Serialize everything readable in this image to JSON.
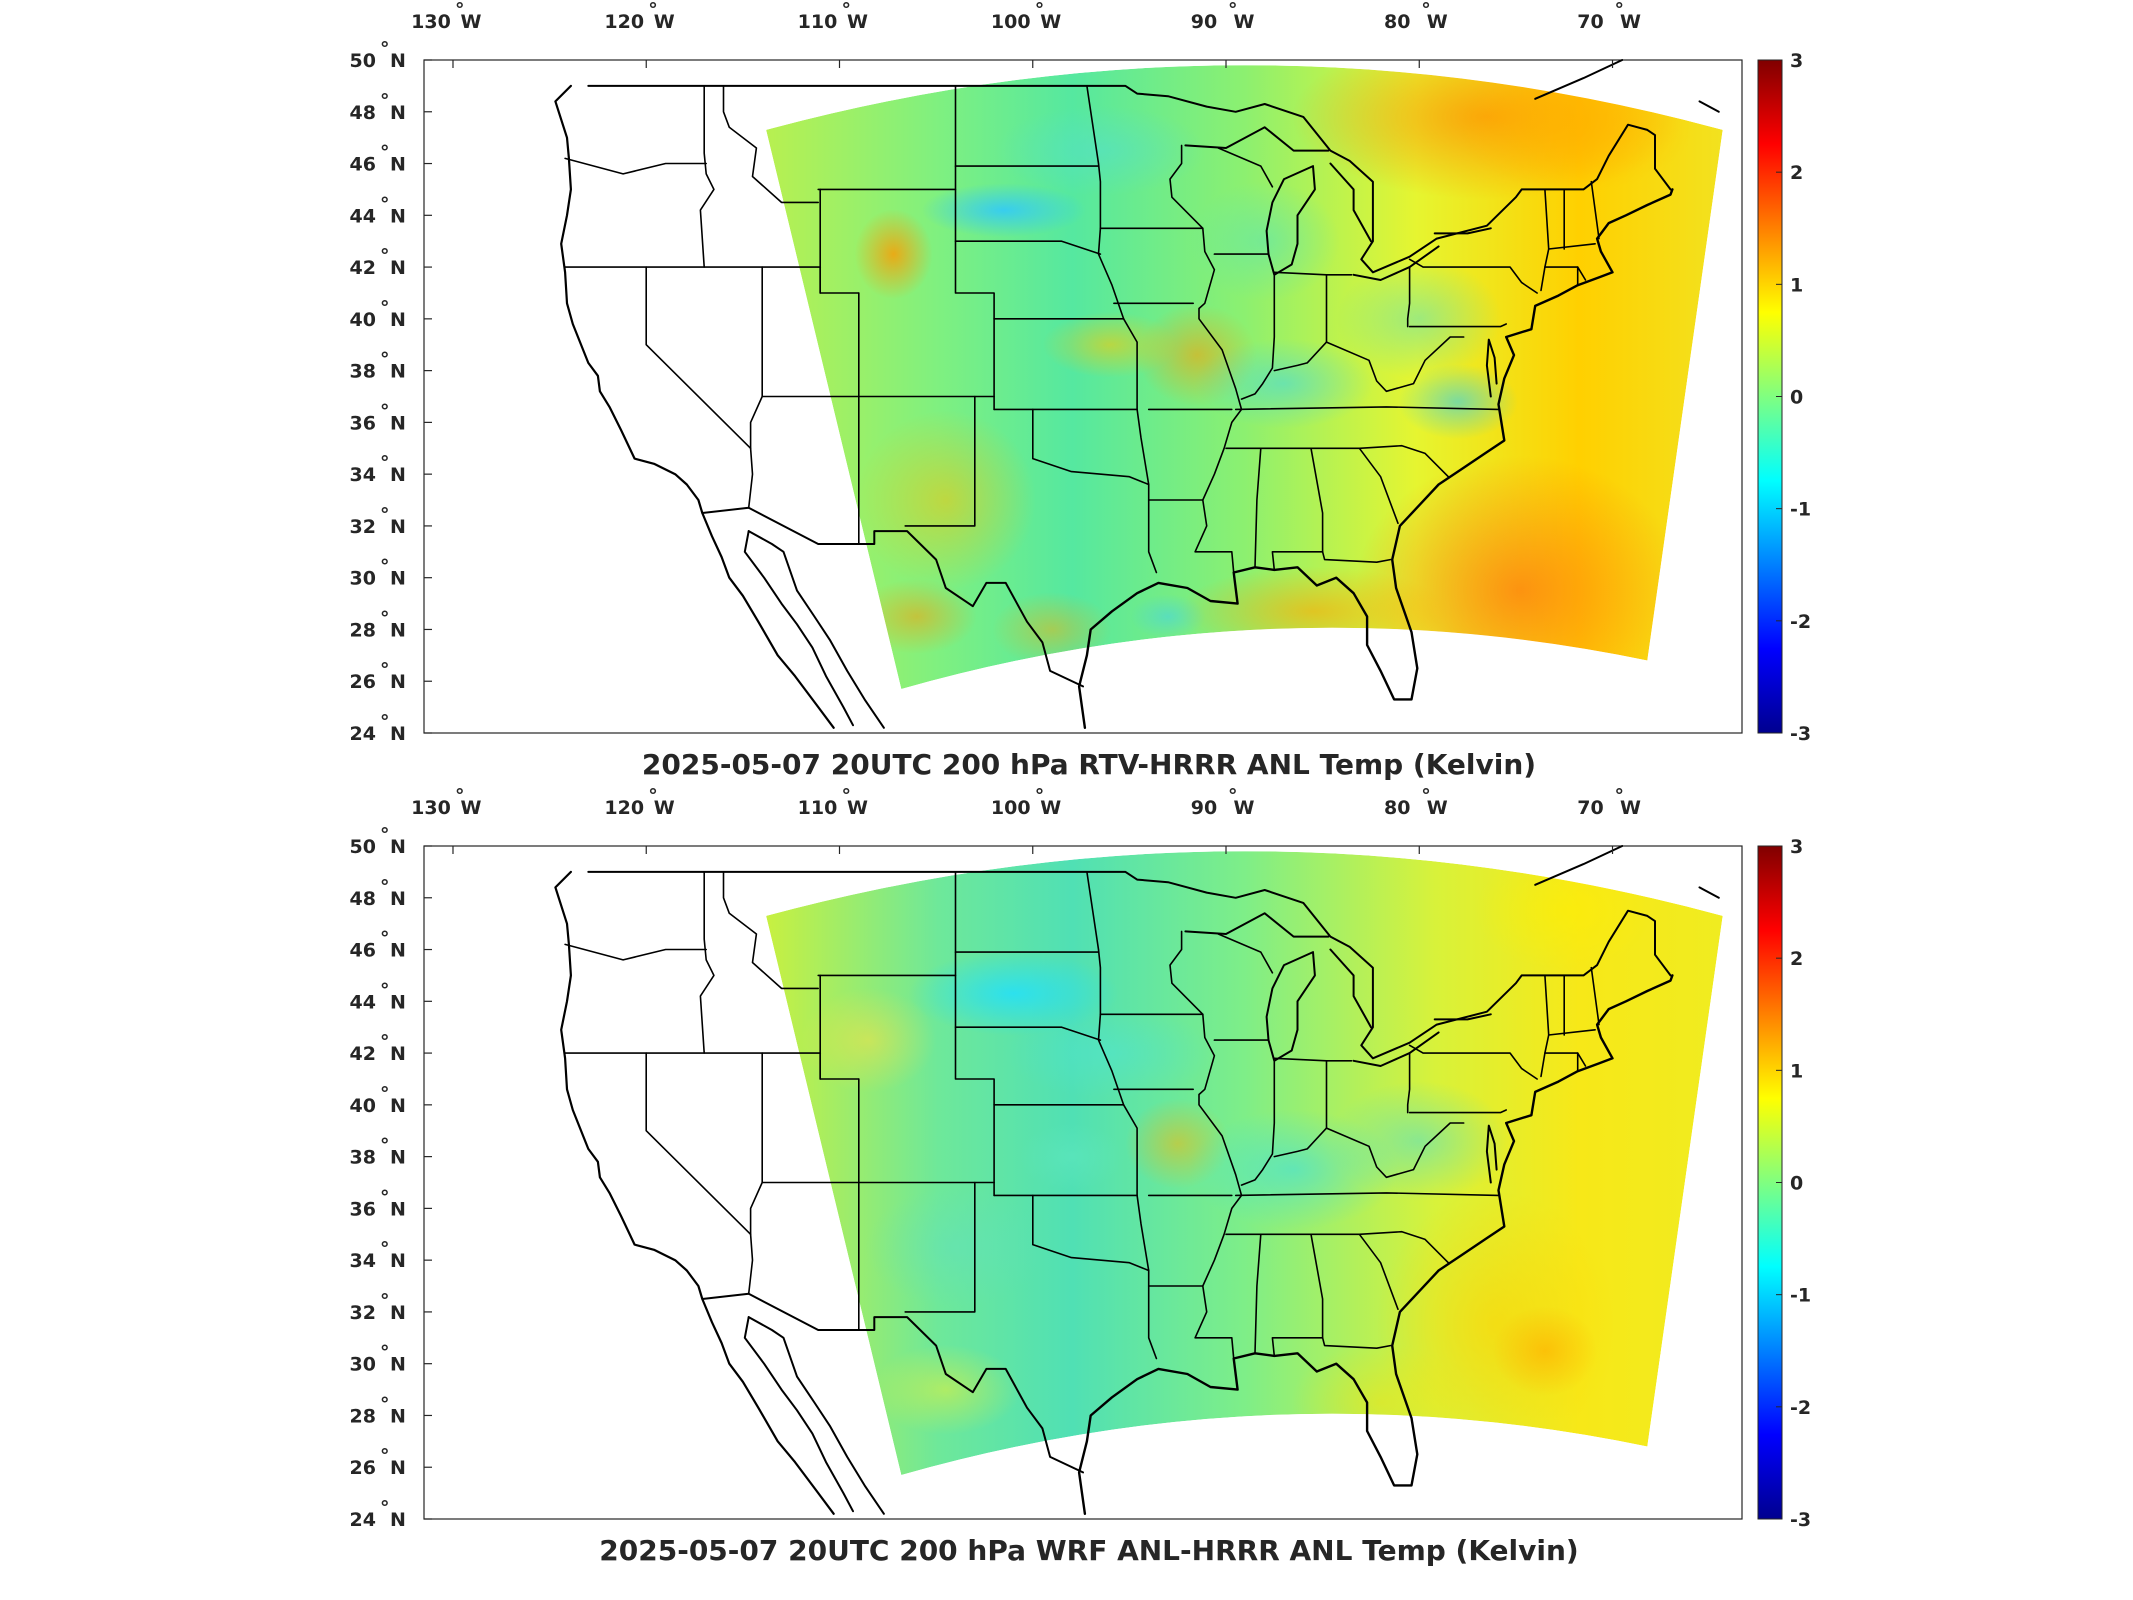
{
  "panels": [
    {
      "id": "rtv",
      "title": "2025-05-07 20UTC 200 hPa RTV-HRRR ANL Temp (Kelvin)",
      "field_style": "warm",
      "colorbar": {
        "min": -3,
        "max": 3,
        "ticks": [
          "3",
          "2",
          "1",
          "0",
          "-1",
          "-2",
          "-3"
        ]
      }
    },
    {
      "id": "wrf",
      "title": "2025-05-07 20UTC 200 hPa WRF ANL-HRRR ANL Temp (Kelvin)",
      "field_style": "mild",
      "colorbar": {
        "min": -3,
        "max": 3,
        "ticks": [
          "3",
          "2",
          "1",
          "0",
          "-1",
          "-2",
          "-3"
        ]
      }
    }
  ],
  "lon_ticks": [
    {
      "lon": -130,
      "label": "130",
      "hemi": "W"
    },
    {
      "lon": -120,
      "label": "120",
      "hemi": "W"
    },
    {
      "lon": -110,
      "label": "110",
      "hemi": "W"
    },
    {
      "lon": -100,
      "label": "100",
      "hemi": "W"
    },
    {
      "lon": -90,
      "label": "90",
      "hemi": "W"
    },
    {
      "lon": -80,
      "label": "80",
      "hemi": "W"
    },
    {
      "lon": -70,
      "label": "70",
      "hemi": "W"
    }
  ],
  "lat_ticks": [
    {
      "lat": 50,
      "label": "50",
      "hemi": "N"
    },
    {
      "lat": 48,
      "label": "48",
      "hemi": "N"
    },
    {
      "lat": 46,
      "label": "46",
      "hemi": "N"
    },
    {
      "lat": 44,
      "label": "44",
      "hemi": "N"
    },
    {
      "lat": 42,
      "label": "42",
      "hemi": "N"
    },
    {
      "lat": 40,
      "label": "40",
      "hemi": "N"
    },
    {
      "lat": 38,
      "label": "38",
      "hemi": "N"
    },
    {
      "lat": 36,
      "label": "36",
      "hemi": "N"
    },
    {
      "lat": 34,
      "label": "34",
      "hemi": "N"
    },
    {
      "lat": 32,
      "label": "32",
      "hemi": "N"
    },
    {
      "lat": 30,
      "label": "30",
      "hemi": "N"
    },
    {
      "lat": 28,
      "label": "28",
      "hemi": "N"
    },
    {
      "lat": 26,
      "label": "26",
      "hemi": "N"
    },
    {
      "lat": 24,
      "label": "24",
      "hemi": "N"
    }
  ],
  "colors": {
    "land_lines": "#000000",
    "axis": "#262626",
    "jet_colormap": [
      "#00008f",
      "#0000ff",
      "#0080ff",
      "#00ffff",
      "#80ff80",
      "#ffff00",
      "#ff8000",
      "#ff0000",
      "#800000"
    ]
  }
}
